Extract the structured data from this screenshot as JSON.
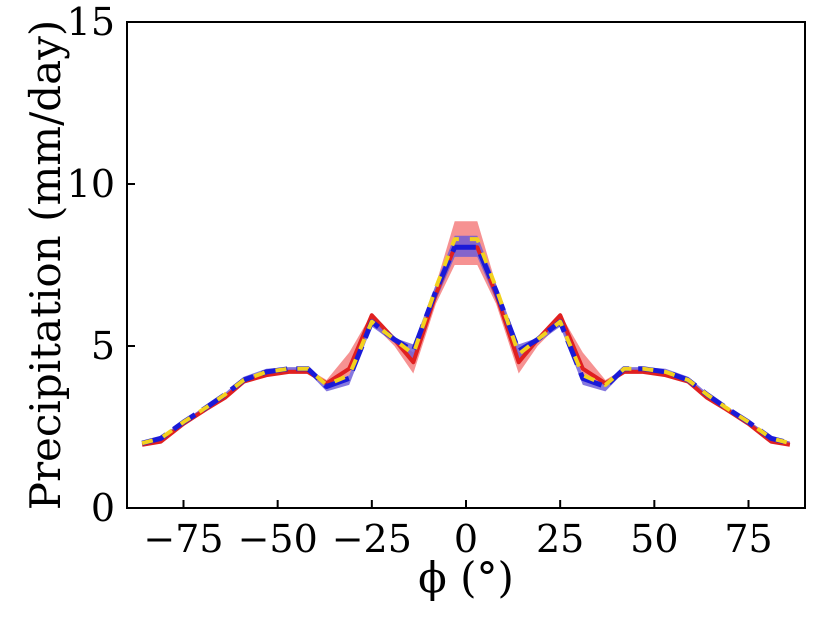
{
  "chart_data": {
    "type": "line",
    "xlabel": "ϕ (°)",
    "ylabel": "Precipitation (mm/day)",
    "xlim": [
      -90,
      90
    ],
    "ylim": [
      0,
      15
    ],
    "xticks": [
      -75,
      -50,
      -25,
      0,
      25,
      50,
      75
    ],
    "xtick_labels": [
      "−75",
      "−50",
      "−25",
      "0",
      "25",
      "50",
      "75"
    ],
    "yticks": [
      0,
      5,
      10,
      15
    ],
    "ytick_labels": [
      "0",
      "5",
      "10",
      "15"
    ],
    "grid": false,
    "legend": "none",
    "x": [
      -86,
      -81,
      -75,
      -69,
      -64,
      -59,
      -53,
      -47,
      -42,
      -37,
      -31,
      -25,
      -19,
      -14,
      -8,
      -3,
      3,
      8,
      14,
      19,
      25,
      31,
      37,
      42,
      47,
      53,
      59,
      64,
      69,
      75,
      81,
      86
    ],
    "bands": [
      {
        "color": "#f47a7a",
        "lower": [
          1.95,
          2.05,
          2.6,
          3.0,
          3.35,
          3.85,
          4.05,
          4.15,
          4.15,
          3.75,
          4.1,
          5.7,
          5.0,
          4.15,
          6.3,
          7.5,
          7.5,
          6.3,
          4.15,
          5.0,
          5.7,
          4.1,
          3.75,
          4.15,
          4.15,
          4.05,
          3.85,
          3.35,
          3.0,
          2.6,
          2.05,
          1.95
        ],
        "upper": [
          2.05,
          2.2,
          2.7,
          3.15,
          3.5,
          4.0,
          4.2,
          4.3,
          4.3,
          3.95,
          4.8,
          6.0,
          5.2,
          4.8,
          6.9,
          8.85,
          8.85,
          6.9,
          4.8,
          5.2,
          6.0,
          4.8,
          3.95,
          4.3,
          4.3,
          4.2,
          4.0,
          3.5,
          3.15,
          2.7,
          2.2,
          2.05
        ]
      },
      {
        "color": "#6a5ad8",
        "lower": [
          1.95,
          2.1,
          2.6,
          3.05,
          3.45,
          3.9,
          4.15,
          4.2,
          4.2,
          3.6,
          3.8,
          5.6,
          5.1,
          4.6,
          6.4,
          7.75,
          7.75,
          6.4,
          4.6,
          5.1,
          5.6,
          3.8,
          3.6,
          4.2,
          4.2,
          4.15,
          3.9,
          3.45,
          3.05,
          2.6,
          2.1,
          1.95
        ],
        "upper": [
          2.05,
          2.2,
          2.7,
          3.15,
          3.55,
          4.05,
          4.3,
          4.35,
          4.35,
          3.8,
          4.1,
          5.85,
          5.25,
          5.05,
          6.9,
          8.4,
          8.4,
          6.9,
          5.05,
          5.25,
          5.85,
          4.1,
          3.8,
          4.35,
          4.35,
          4.3,
          4.05,
          3.55,
          3.15,
          2.7,
          2.2,
          2.05
        ]
      }
    ],
    "series": [
      {
        "color": "#e02020",
        "dash": "solid",
        "values": [
          1.95,
          2.05,
          2.6,
          3.05,
          3.4,
          3.9,
          4.1,
          4.2,
          4.2,
          3.85,
          4.3,
          5.95,
          5.2,
          4.5,
          6.6,
          8.05,
          8.05,
          6.6,
          4.5,
          5.2,
          5.95,
          4.3,
          3.85,
          4.2,
          4.2,
          4.1,
          3.9,
          3.4,
          3.05,
          2.6,
          2.05,
          1.95
        ]
      },
      {
        "color": "#1a1ad8",
        "dash": "long",
        "values": [
          2.0,
          2.15,
          2.65,
          3.1,
          3.5,
          3.95,
          4.2,
          4.3,
          4.3,
          3.75,
          4.0,
          5.75,
          5.2,
          4.85,
          6.7,
          8.05,
          8.05,
          6.7,
          4.85,
          5.2,
          5.75,
          4.0,
          3.75,
          4.3,
          4.3,
          4.2,
          3.95,
          3.5,
          3.1,
          2.65,
          2.15,
          2.0
        ]
      },
      {
        "color": "#f2d21e",
        "dash": "short",
        "values": [
          2.0,
          2.15,
          2.65,
          3.1,
          3.5,
          3.95,
          4.2,
          4.3,
          4.3,
          3.8,
          4.1,
          5.75,
          5.2,
          4.75,
          6.8,
          8.3,
          8.3,
          6.8,
          4.75,
          5.2,
          5.75,
          4.1,
          3.8,
          4.3,
          4.3,
          4.2,
          3.95,
          3.5,
          3.1,
          2.65,
          2.15,
          2.0
        ]
      }
    ]
  }
}
